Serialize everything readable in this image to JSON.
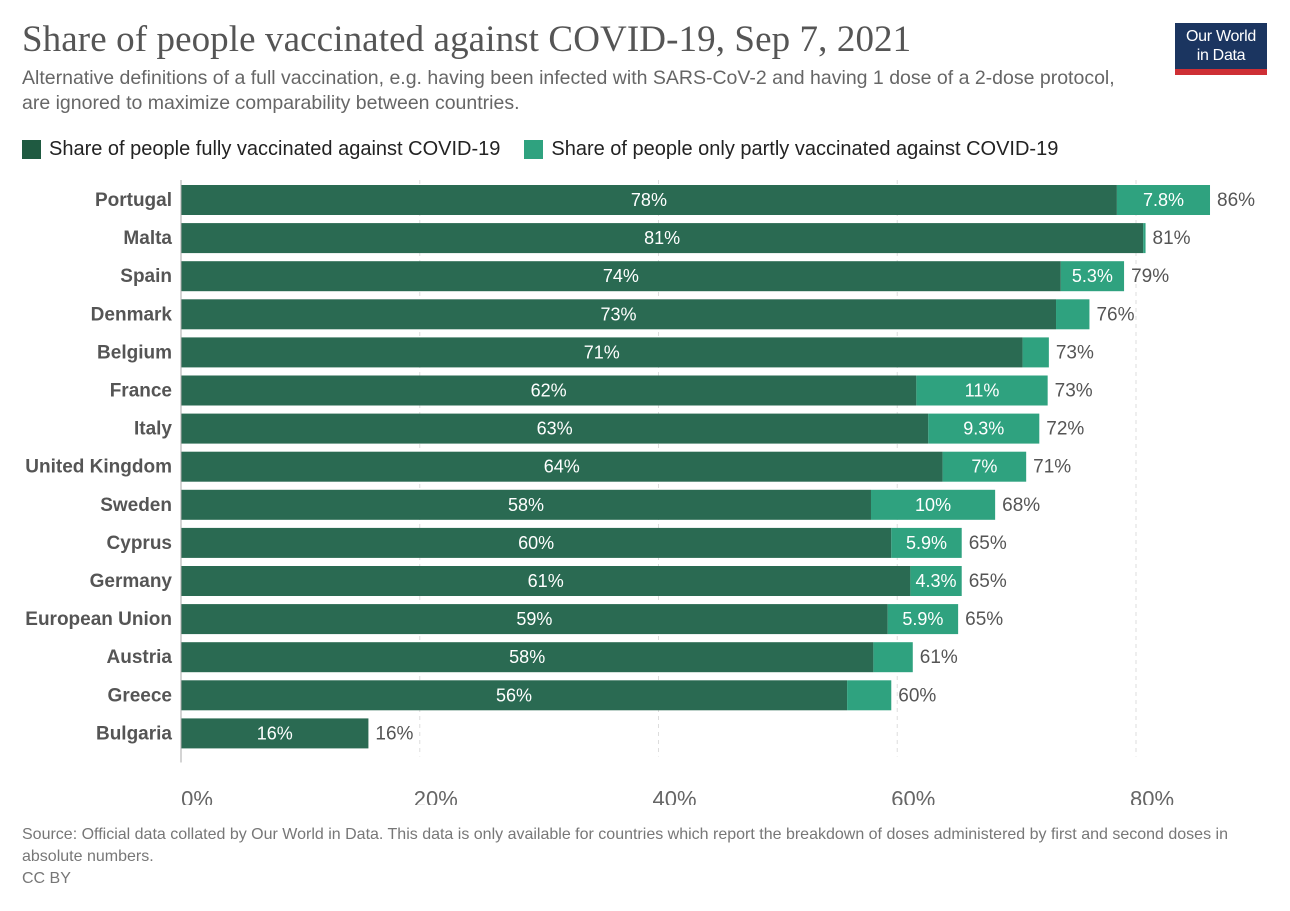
{
  "header": {
    "title": "Share of people vaccinated against COVID-19, Sep 7, 2021",
    "subtitle": "Alternative definitions of a full vaccination, e.g. having been infected with SARS-CoV-2 and having 1 dose of a 2-dose protocol, are ignored to maximize comparability between countries.",
    "logo_line1": "Our World",
    "logo_line2": "in Data"
  },
  "colors": {
    "full": "#2a6a52",
    "partial": "#2fa27f",
    "logo_bg": "#1b3560",
    "logo_bar": "#ce2f35"
  },
  "chart_data": {
    "type": "bar",
    "orientation": "horizontal",
    "stacked": true,
    "title": "Share of people vaccinated against COVID-19, Sep 7, 2021",
    "xlabel": "",
    "ylabel": "",
    "xlim": [
      0,
      86
    ],
    "x_ticks": [
      0,
      20,
      40,
      60,
      80
    ],
    "x_tick_labels": [
      "0%",
      "20%",
      "40%",
      "60%",
      "80%"
    ],
    "grid": "vertical dashed",
    "legend_position": "top-left",
    "legend": [
      "Share of people fully vaccinated against COVID-19",
      "Share of people only partly vaccinated against COVID-19"
    ],
    "categories": [
      "Portugal",
      "Malta",
      "Spain",
      "Denmark",
      "Belgium",
      "France",
      "Italy",
      "United Kingdom",
      "Sweden",
      "Cyprus",
      "Germany",
      "European Union",
      "Austria",
      "Greece",
      "Bulgaria"
    ],
    "series": [
      {
        "name": "Share of people fully vaccinated against COVID-19",
        "values": [
          78.4,
          80.6,
          73.7,
          73.3,
          70.5,
          61.6,
          62.6,
          63.8,
          57.8,
          59.5,
          61.1,
          59.2,
          58.0,
          55.8,
          15.7
        ],
        "labels": [
          "78%",
          "81%",
          "74%",
          "73%",
          "71%",
          "62%",
          "63%",
          "64%",
          "58%",
          "60%",
          "61%",
          "59%",
          "58%",
          "56%",
          "16%"
        ]
      },
      {
        "name": "Share of people only partly vaccinated against COVID-19",
        "values": [
          7.8,
          0.2,
          5.3,
          2.8,
          2.2,
          11.0,
          9.3,
          7.0,
          10.4,
          5.9,
          4.3,
          5.9,
          3.3,
          3.7,
          0.0
        ],
        "labels": [
          "7.8%",
          "",
          "5.3%",
          "",
          "",
          "11%",
          "9.3%",
          "7%",
          "10%",
          "5.9%",
          "4.3%",
          "5.9%",
          "",
          "",
          ""
        ]
      }
    ],
    "total_labels": [
      "86%",
      "81%",
      "79%",
      "76%",
      "73%",
      "73%",
      "72%",
      "71%",
      "68%",
      "65%",
      "65%",
      "65%",
      "61%",
      "60%",
      "16%"
    ]
  },
  "footer": {
    "source": "Source: Official data collated by Our World in Data. This data is only available for countries which report the breakdown of doses administered by first and second doses in absolute numbers.",
    "license": "CC BY"
  }
}
